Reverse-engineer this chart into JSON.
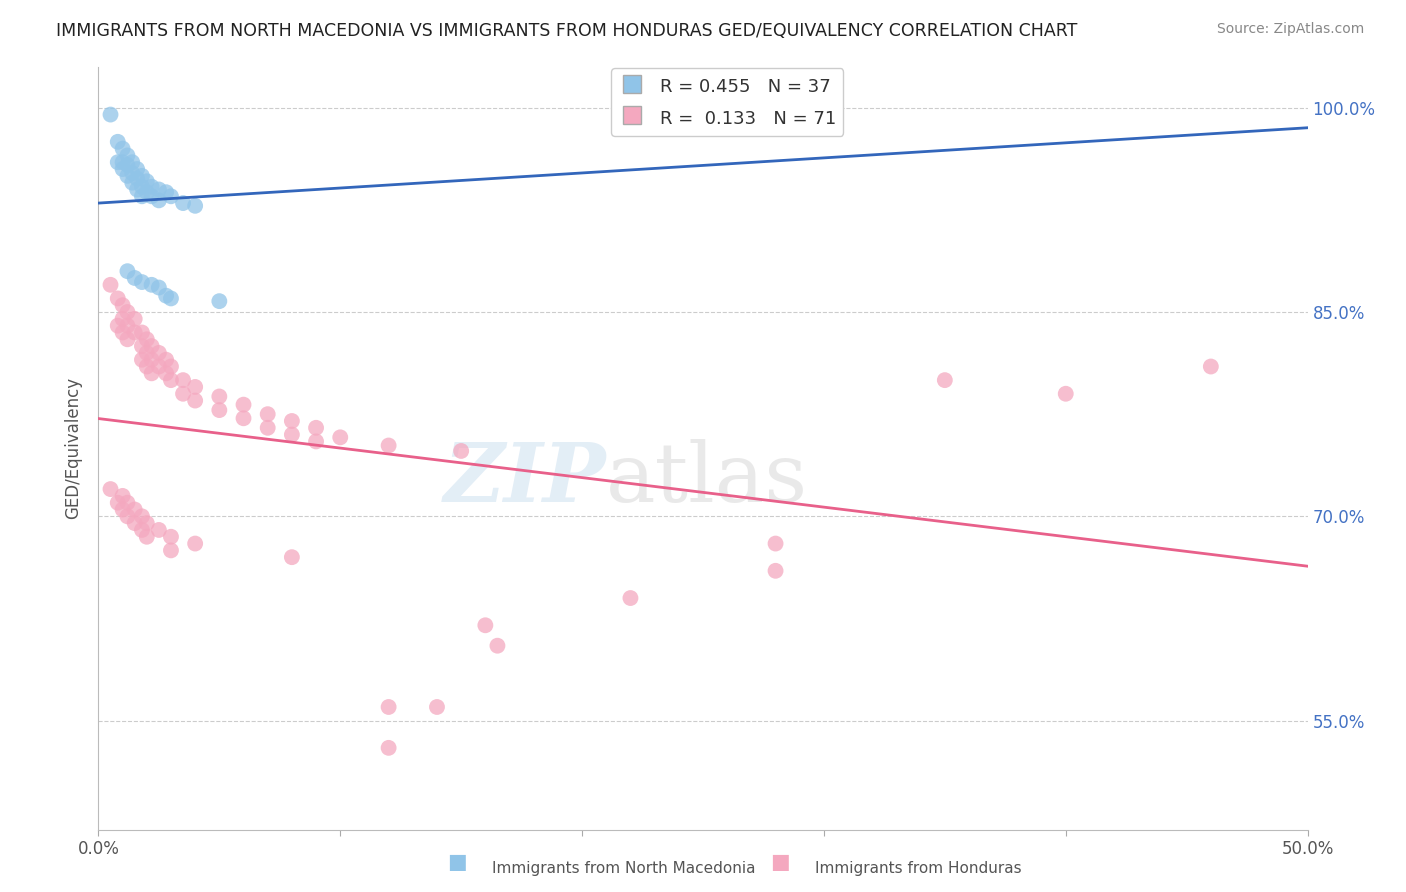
{
  "title": "IMMIGRANTS FROM NORTH MACEDONIA VS IMMIGRANTS FROM HONDURAS GED/EQUIVALENCY CORRELATION CHART",
  "source": "Source: ZipAtlas.com",
  "ylabel": "GED/Equivalency",
  "xlim": [
    0.0,
    0.5
  ],
  "ylim": [
    0.47,
    1.03
  ],
  "y_ticks": [
    1.0,
    0.85,
    0.7,
    0.55
  ],
  "y_tick_labels": [
    "100.0%",
    "85.0%",
    "70.0%",
    "55.0%"
  ],
  "x_tick_labels": [
    "0.0%",
    "",
    "",
    "",
    "",
    "50.0%"
  ],
  "legend_blue_r": "0.455",
  "legend_blue_n": "37",
  "legend_pink_r": "0.133",
  "legend_pink_n": "71",
  "blue_color": "#90c4e8",
  "pink_color": "#f4a8bf",
  "blue_line_color": "#3366bb",
  "pink_line_color": "#e8608a",
  "blue_scatter": [
    [
      0.005,
      0.995
    ],
    [
      0.008,
      0.975
    ],
    [
      0.008,
      0.96
    ],
    [
      0.01,
      0.97
    ],
    [
      0.01,
      0.96
    ],
    [
      0.01,
      0.955
    ],
    [
      0.012,
      0.965
    ],
    [
      0.012,
      0.958
    ],
    [
      0.012,
      0.95
    ],
    [
      0.014,
      0.96
    ],
    [
      0.014,
      0.952
    ],
    [
      0.014,
      0.945
    ],
    [
      0.016,
      0.955
    ],
    [
      0.016,
      0.948
    ],
    [
      0.016,
      0.94
    ],
    [
      0.018,
      0.95
    ],
    [
      0.018,
      0.942
    ],
    [
      0.018,
      0.935
    ],
    [
      0.02,
      0.946
    ],
    [
      0.02,
      0.938
    ],
    [
      0.022,
      0.942
    ],
    [
      0.022,
      0.935
    ],
    [
      0.025,
      0.94
    ],
    [
      0.025,
      0.932
    ],
    [
      0.028,
      0.938
    ],
    [
      0.03,
      0.935
    ],
    [
      0.035,
      0.93
    ],
    [
      0.04,
      0.928
    ],
    [
      0.012,
      0.88
    ],
    [
      0.015,
      0.875
    ],
    [
      0.018,
      0.872
    ],
    [
      0.022,
      0.87
    ],
    [
      0.025,
      0.868
    ],
    [
      0.028,
      0.862
    ],
    [
      0.03,
      0.86
    ],
    [
      0.05,
      0.858
    ],
    [
      0.24,
      0.99
    ]
  ],
  "pink_scatter": [
    [
      0.005,
      0.87
    ],
    [
      0.008,
      0.86
    ],
    [
      0.008,
      0.84
    ],
    [
      0.01,
      0.855
    ],
    [
      0.01,
      0.845
    ],
    [
      0.01,
      0.835
    ],
    [
      0.012,
      0.85
    ],
    [
      0.012,
      0.84
    ],
    [
      0.012,
      0.83
    ],
    [
      0.015,
      0.845
    ],
    [
      0.015,
      0.835
    ],
    [
      0.018,
      0.835
    ],
    [
      0.018,
      0.825
    ],
    [
      0.018,
      0.815
    ],
    [
      0.02,
      0.83
    ],
    [
      0.02,
      0.82
    ],
    [
      0.02,
      0.81
    ],
    [
      0.022,
      0.825
    ],
    [
      0.022,
      0.815
    ],
    [
      0.022,
      0.805
    ],
    [
      0.025,
      0.82
    ],
    [
      0.025,
      0.81
    ],
    [
      0.028,
      0.815
    ],
    [
      0.028,
      0.805
    ],
    [
      0.03,
      0.81
    ],
    [
      0.03,
      0.8
    ],
    [
      0.035,
      0.8
    ],
    [
      0.035,
      0.79
    ],
    [
      0.04,
      0.795
    ],
    [
      0.04,
      0.785
    ],
    [
      0.05,
      0.788
    ],
    [
      0.05,
      0.778
    ],
    [
      0.06,
      0.782
    ],
    [
      0.06,
      0.772
    ],
    [
      0.07,
      0.775
    ],
    [
      0.07,
      0.765
    ],
    [
      0.08,
      0.77
    ],
    [
      0.08,
      0.76
    ],
    [
      0.09,
      0.765
    ],
    [
      0.09,
      0.755
    ],
    [
      0.1,
      0.758
    ],
    [
      0.12,
      0.752
    ],
    [
      0.15,
      0.748
    ],
    [
      0.005,
      0.72
    ],
    [
      0.008,
      0.71
    ],
    [
      0.01,
      0.715
    ],
    [
      0.01,
      0.705
    ],
    [
      0.012,
      0.71
    ],
    [
      0.012,
      0.7
    ],
    [
      0.015,
      0.705
    ],
    [
      0.015,
      0.695
    ],
    [
      0.018,
      0.7
    ],
    [
      0.018,
      0.69
    ],
    [
      0.02,
      0.695
    ],
    [
      0.02,
      0.685
    ],
    [
      0.025,
      0.69
    ],
    [
      0.03,
      0.685
    ],
    [
      0.03,
      0.675
    ],
    [
      0.04,
      0.68
    ],
    [
      0.08,
      0.67
    ],
    [
      0.35,
      0.8
    ],
    [
      0.4,
      0.79
    ],
    [
      0.46,
      0.81
    ],
    [
      0.12,
      0.56
    ],
    [
      0.14,
      0.56
    ],
    [
      0.12,
      0.53
    ],
    [
      0.16,
      0.62
    ],
    [
      0.165,
      0.605
    ],
    [
      0.22,
      0.64
    ],
    [
      0.28,
      0.66
    ],
    [
      0.28,
      0.68
    ]
  ]
}
